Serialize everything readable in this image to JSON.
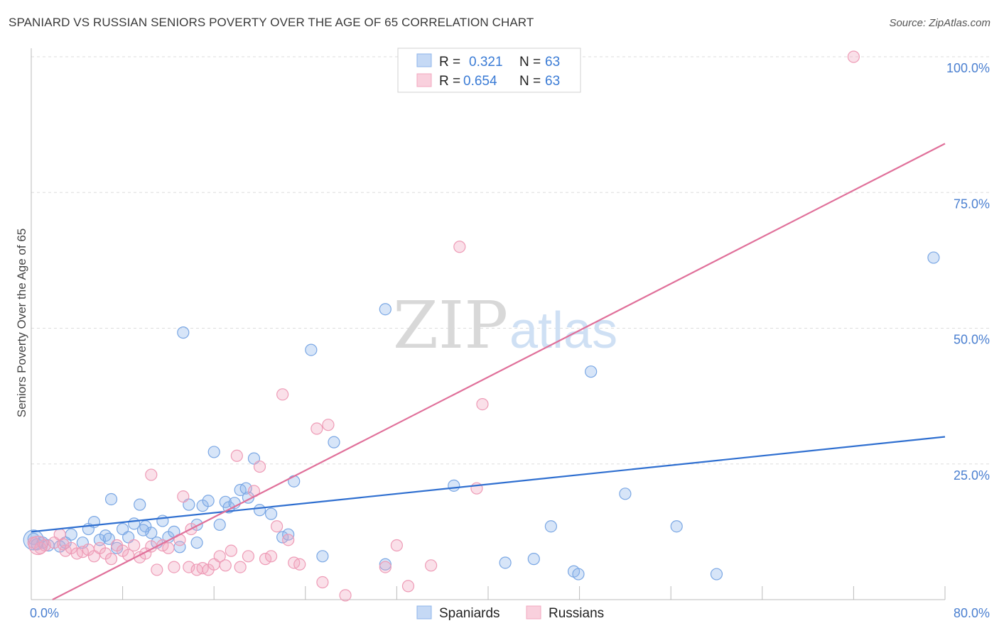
{
  "title": "SPANIARD VS RUSSIAN SENIORS POVERTY OVER THE AGE OF 65 CORRELATION CHART",
  "source": "Source: ZipAtlas.com",
  "watermark": {
    "zip": "ZIP",
    "atlas": "atlas"
  },
  "legend": {
    "r_label": "R =",
    "n_label": "N =",
    "rows": [
      {
        "r": "0.321",
        "n": "63"
      },
      {
        "r": "0.654",
        "n": "63"
      }
    ]
  },
  "chart_data": {
    "type": "scatter",
    "title": "SPANIARD VS RUSSIAN SENIORS POVERTY OVER THE AGE OF 65 CORRELATION CHART",
    "xlabel": "",
    "ylabel": "Seniors Poverty Over the Age of 65",
    "xlim": [
      0,
      80
    ],
    "ylim": [
      0,
      100
    ],
    "x_ticks_labels": [
      "0.0%",
      "80.0%"
    ],
    "y_ticks": [
      25,
      50,
      75,
      100
    ],
    "y_tick_labels": [
      "25.0%",
      "50.0%",
      "75.0%",
      "100.0%"
    ],
    "colors": {
      "spaniards": "#8db4ea",
      "russians": "#f2a7bf",
      "spaniards_line": "#2f6fd0",
      "russians_line": "#e0709a"
    },
    "series": [
      {
        "name": "Spaniards",
        "trend": {
          "x": [
            0,
            80
          ],
          "y": [
            12.5,
            30
          ]
        },
        "points": [
          [
            0.2,
            11.2
          ],
          [
            0.5,
            10.2
          ],
          [
            1.0,
            10.5
          ],
          [
            1.5,
            10.0
          ],
          [
            2.5,
            9.8
          ],
          [
            3.5,
            12.0
          ],
          [
            4.5,
            10.5
          ],
          [
            5.0,
            13.0
          ],
          [
            5.5,
            14.3
          ],
          [
            6.0,
            11.0
          ],
          [
            6.5,
            11.8
          ],
          [
            7.0,
            18.5
          ],
          [
            7.5,
            9.5
          ],
          [
            8.0,
            13.0
          ],
          [
            8.5,
            11.5
          ],
          [
            9.0,
            14.0
          ],
          [
            9.5,
            17.5
          ],
          [
            10.0,
            13.5
          ],
          [
            10.5,
            12.3
          ],
          [
            11.0,
            10.5
          ],
          [
            11.5,
            14.5
          ],
          [
            12.0,
            11.5
          ],
          [
            12.5,
            12.5
          ],
          [
            13.0,
            9.7
          ],
          [
            13.3,
            49.2
          ],
          [
            13.8,
            17.5
          ],
          [
            14.5,
            10.5
          ],
          [
            14.5,
            13.8
          ],
          [
            15.0,
            17.3
          ],
          [
            15.5,
            18.2
          ],
          [
            16.0,
            27.2
          ],
          [
            16.5,
            13.8
          ],
          [
            17.0,
            18.0
          ],
          [
            17.3,
            17.0
          ],
          [
            17.8,
            17.8
          ],
          [
            18.3,
            20.2
          ],
          [
            18.8,
            20.5
          ],
          [
            19.0,
            18.8
          ],
          [
            19.5,
            26.0
          ],
          [
            20.0,
            16.5
          ],
          [
            21.0,
            15.8
          ],
          [
            22.0,
            11.5
          ],
          [
            22.5,
            12.0
          ],
          [
            23.0,
            21.8
          ],
          [
            24.5,
            46.0
          ],
          [
            25.5,
            8.0
          ],
          [
            26.5,
            29.0
          ],
          [
            31.0,
            53.5
          ],
          [
            31.0,
            6.5
          ],
          [
            37.0,
            21.0
          ],
          [
            41.5,
            6.8
          ],
          [
            44.0,
            7.5
          ],
          [
            45.5,
            13.5
          ],
          [
            47.5,
            5.2
          ],
          [
            47.9,
            4.7
          ],
          [
            49.0,
            42.0
          ],
          [
            52.0,
            19.5
          ],
          [
            56.5,
            13.5
          ],
          [
            60.0,
            4.7
          ],
          [
            79.0,
            63.0
          ],
          [
            3.0,
            10.5
          ],
          [
            6.8,
            11.2
          ],
          [
            9.8,
            12.8
          ]
        ]
      },
      {
        "name": "Russians",
        "trend": {
          "x": [
            0,
            80
          ],
          "y": [
            -2,
            84
          ]
        },
        "points": [
          [
            0.2,
            10.5
          ],
          [
            0.8,
            9.5
          ],
          [
            1.2,
            10.0
          ],
          [
            2.0,
            10.5
          ],
          [
            2.5,
            12.0
          ],
          [
            3.0,
            9.0
          ],
          [
            3.5,
            9.5
          ],
          [
            4.0,
            8.5
          ],
          [
            4.5,
            8.8
          ],
          [
            5.0,
            9.2
          ],
          [
            5.5,
            8.0
          ],
          [
            6.0,
            9.5
          ],
          [
            6.5,
            8.5
          ],
          [
            7.0,
            7.5
          ],
          [
            7.5,
            10.0
          ],
          [
            8.0,
            9.0
          ],
          [
            8.5,
            8.2
          ],
          [
            9.0,
            10.0
          ],
          [
            9.5,
            7.8
          ],
          [
            10.0,
            8.5
          ],
          [
            10.5,
            9.8
          ],
          [
            10.5,
            23.0
          ],
          [
            11.0,
            5.5
          ],
          [
            11.5,
            10.0
          ],
          [
            12.0,
            9.5
          ],
          [
            12.5,
            6.0
          ],
          [
            13.0,
            11.0
          ],
          [
            13.3,
            19.0
          ],
          [
            13.8,
            6.0
          ],
          [
            14.0,
            13.0
          ],
          [
            14.5,
            5.5
          ],
          [
            15.0,
            5.8
          ],
          [
            15.5,
            5.5
          ],
          [
            16.0,
            6.5
          ],
          [
            16.5,
            8.0
          ],
          [
            17.0,
            6.3
          ],
          [
            17.5,
            9.0
          ],
          [
            18.0,
            26.5
          ],
          [
            18.3,
            6.0
          ],
          [
            19.0,
            8.0
          ],
          [
            19.5,
            20.0
          ],
          [
            20.0,
            24.5
          ],
          [
            20.5,
            7.5
          ],
          [
            21.0,
            8.0
          ],
          [
            21.5,
            13.5
          ],
          [
            22.0,
            37.8
          ],
          [
            22.5,
            11.0
          ],
          [
            23.0,
            6.8
          ],
          [
            23.5,
            6.5
          ],
          [
            25.0,
            31.5
          ],
          [
            25.5,
            3.2
          ],
          [
            26.0,
            32.2
          ],
          [
            27.5,
            0.8
          ],
          [
            31.0,
            6.0
          ],
          [
            32.0,
            10.0
          ],
          [
            33.0,
            2.5
          ],
          [
            35.0,
            6.3
          ],
          [
            37.5,
            65.0
          ],
          [
            39.0,
            20.5
          ],
          [
            39.5,
            36.0
          ],
          [
            47.0,
            100.0
          ],
          [
            72.0,
            100.0
          ],
          [
            2.8,
            10.2
          ]
        ]
      }
    ]
  },
  "bottom_legend": [
    "Spaniards",
    "Russians"
  ]
}
